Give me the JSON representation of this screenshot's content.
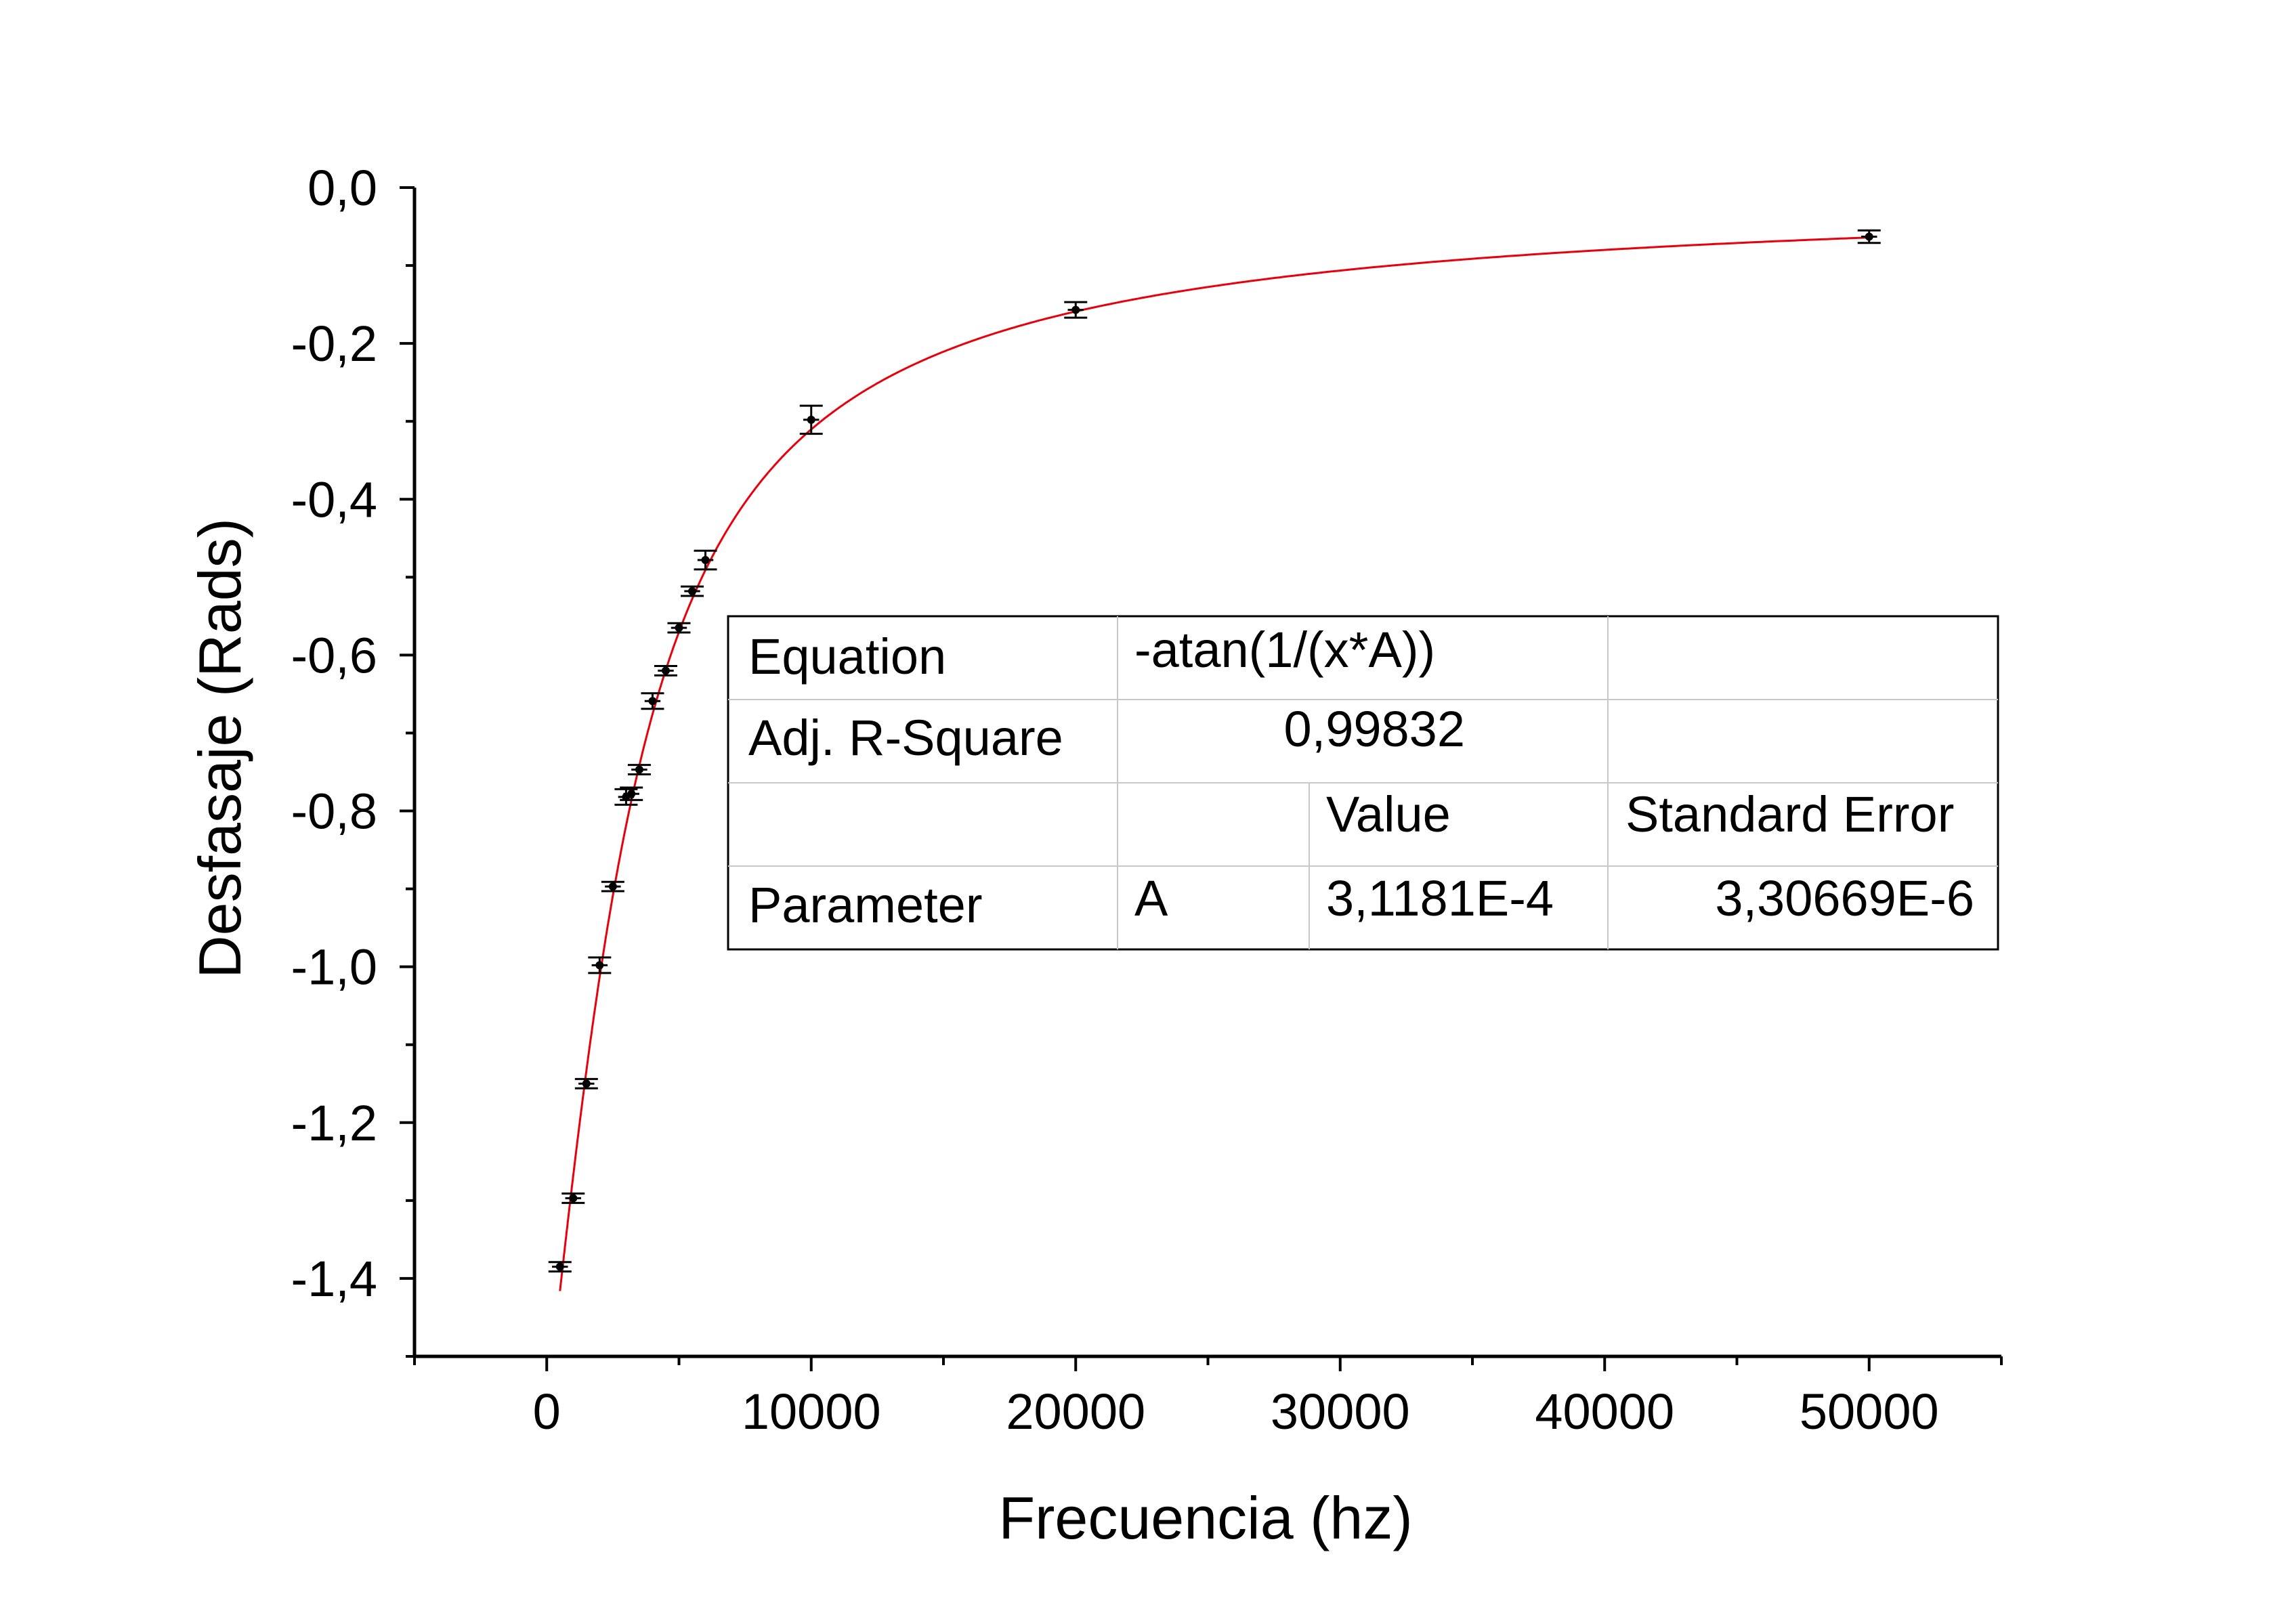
{
  "chart_data": {
    "type": "scatter",
    "xlabel": "Frecuencia (hz)",
    "ylabel": "Desfasaje (Rads)",
    "xlim": [
      -5000,
      55000
    ],
    "ylim": [
      -1.5,
      0.0
    ],
    "x_ticks": [
      0,
      10000,
      20000,
      30000,
      40000,
      50000
    ],
    "x_tick_labels": [
      "0",
      "10000",
      "20000",
      "30000",
      "40000",
      "50000"
    ],
    "y_ticks": [
      0.0,
      -0.2,
      -0.4,
      -0.6,
      -0.8,
      -1.0,
      -1.2,
      -1.4
    ],
    "y_tick_labels": [
      "0,0",
      "-0,2",
      "-0,4",
      "-0,6",
      "-0,8",
      "-1,0",
      "-1,2",
      "-1,4"
    ],
    "grid": false,
    "series": [
      {
        "points": [
          {
            "x": 500,
            "y": -1.385,
            "yerr": 0.006,
            "xerr": 300
          },
          {
            "x": 1000,
            "y": -1.297,
            "yerr": 0.006,
            "xerr": 300
          },
          {
            "x": 1500,
            "y": -1.15,
            "yerr": 0.006,
            "xerr": 300
          },
          {
            "x": 2000,
            "y": -0.998,
            "yerr": 0.01,
            "xerr": 300
          },
          {
            "x": 2500,
            "y": -0.897,
            "yerr": 0.006,
            "xerr": 300
          },
          {
            "x": 3000,
            "y": -0.782,
            "yerr": 0.01,
            "xerr": 300
          },
          {
            "x": 3200,
            "y": -0.778,
            "yerr": 0.008,
            "xerr": 300
          },
          {
            "x": 3500,
            "y": -0.747,
            "yerr": 0.006,
            "xerr": 300
          },
          {
            "x": 4000,
            "y": -0.659,
            "yerr": 0.01,
            "xerr": 300
          },
          {
            "x": 4500,
            "y": -0.62,
            "yerr": 0.006,
            "xerr": 300
          },
          {
            "x": 5000,
            "y": -0.565,
            "yerr": 0.006,
            "xerr": 300
          },
          {
            "x": 5500,
            "y": -0.518,
            "yerr": 0.006,
            "xerr": 300
          },
          {
            "x": 6000,
            "y": -0.478,
            "yerr": 0.012,
            "xerr": 300
          },
          {
            "x": 10000,
            "y": -0.298,
            "yerr": 0.018,
            "xerr": 300
          },
          {
            "x": 20000,
            "y": -0.157,
            "yerr": 0.01,
            "xerr": 300
          },
          {
            "x": 50000,
            "y": -0.063,
            "yerr": 0.008,
            "xerr": 300
          }
        ]
      },
      {
        "type": "line",
        "equation": "-atan(1/(x*A))",
        "A": 0.00031181,
        "x_range": [
          500,
          50000
        ],
        "color": "#e8000b"
      }
    ],
    "fit_table": {
      "rows": [
        [
          "Equation",
          "-atan(1/(x*A))",
          "",
          ""
        ],
        [
          "Adj. R-Square",
          "0,99832",
          "",
          ""
        ],
        [
          "",
          "",
          "Value",
          "Standard Error"
        ],
        [
          "Parameter",
          "A",
          "3,1181E-4",
          "3,30669E-6"
        ]
      ]
    }
  }
}
